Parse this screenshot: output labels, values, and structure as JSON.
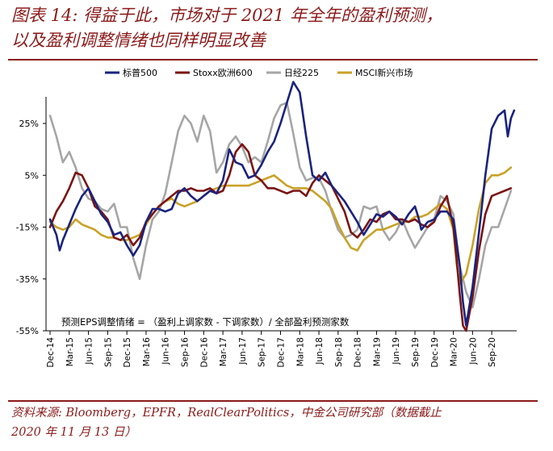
{
  "title": {
    "line1": "图表 14: 得益于此，市场对于 2021 年全年的盈利预测，",
    "line2": "以及盈利调整情绪也同样明显改善"
  },
  "source": {
    "line1": "资料来源: Bloomberg，EPFR，RealClearPolitics，中金公司研究部（数据截止",
    "line2": "2020 年 11 月 13 日）"
  },
  "chart_data": {
    "type": "line",
    "title": "",
    "xlabel": "",
    "ylabel": "",
    "ylim": [
      -55,
      37
    ],
    "y_ticks": [
      25,
      5,
      -15,
      -35,
      -55
    ],
    "y_tick_labels": [
      "25%",
      "5%",
      "-15%",
      "-35%",
      "-55%"
    ],
    "x_range": [
      0,
      71
    ],
    "x_ticks": [
      0,
      3,
      6,
      9,
      12,
      15,
      18,
      21,
      24,
      27,
      30,
      33,
      36,
      39,
      42,
      45,
      48,
      51,
      54,
      57,
      60,
      63,
      66,
      69
    ],
    "x_tick_labels": [
      "Dec-14",
      "Mar-15",
      "Jun-15",
      "Sep-15",
      "Dec-15",
      "Mar-16",
      "Jun-16",
      "Sep-16",
      "Dec-16",
      "Mar-17",
      "Jun-17",
      "Sep-17",
      "Dec-17",
      "Mar-18",
      "Jun-18",
      "Sep-18",
      "Dec-18",
      "Mar-19",
      "Jun-19",
      "Sep-19",
      "Dec-19",
      "Mar-20",
      "Jun-20",
      "Sep-20"
    ],
    "annotation": "预测EPS调整情绪 = （盈利上调家数 - 下调家数）/ 全部盈利预测家数",
    "series": [
      {
        "name": "标普500",
        "color": "#1a237e",
        "points": [
          [
            0,
            -12
          ],
          [
            1,
            -18
          ],
          [
            1.5,
            -24
          ],
          [
            2,
            -20
          ],
          [
            3,
            -14
          ],
          [
            4,
            -8
          ],
          [
            5,
            -3
          ],
          [
            6,
            0
          ],
          [
            7,
            -5
          ],
          [
            8,
            -10
          ],
          [
            9,
            -13
          ],
          [
            10,
            -18
          ],
          [
            11,
            -17
          ],
          [
            12,
            -22
          ],
          [
            13,
            -26
          ],
          [
            14,
            -22
          ],
          [
            15,
            -13
          ],
          [
            16,
            -8
          ],
          [
            17,
            -8
          ],
          [
            18,
            -9
          ],
          [
            19,
            -8
          ],
          [
            20,
            -2
          ],
          [
            21,
            0
          ],
          [
            22,
            -3
          ],
          [
            23,
            -5
          ],
          [
            24,
            -3
          ],
          [
            25,
            -1
          ],
          [
            26,
            -2
          ],
          [
            27,
            3
          ],
          [
            28,
            15
          ],
          [
            29,
            10
          ],
          [
            30,
            9
          ],
          [
            31,
            4
          ],
          [
            32,
            5
          ],
          [
            33,
            9
          ],
          [
            34,
            14
          ],
          [
            35,
            18
          ],
          [
            36,
            25
          ],
          [
            37,
            33
          ],
          [
            38,
            41
          ],
          [
            39,
            37
          ],
          [
            40,
            20
          ],
          [
            41,
            5
          ],
          [
            42,
            3
          ],
          [
            43,
            6
          ],
          [
            44,
            1
          ],
          [
            45,
            -2
          ],
          [
            46,
            -5
          ],
          [
            47,
            -9
          ],
          [
            48,
            -13
          ],
          [
            49,
            -18
          ],
          [
            50,
            -14
          ],
          [
            51,
            -10
          ],
          [
            52,
            -11
          ],
          [
            53,
            -9
          ],
          [
            54,
            -11
          ],
          [
            55,
            -14
          ],
          [
            56,
            -10
          ],
          [
            57,
            -7
          ],
          [
            57.5,
            -11
          ],
          [
            58,
            -16
          ],
          [
            59,
            -13
          ],
          [
            60,
            -12
          ],
          [
            61,
            -9
          ],
          [
            62,
            -9
          ],
          [
            63,
            -12
          ],
          [
            64,
            -30
          ],
          [
            64.5,
            -44
          ],
          [
            65,
            -53
          ],
          [
            66,
            -38
          ],
          [
            67,
            -17
          ],
          [
            68,
            5
          ],
          [
            69,
            23
          ],
          [
            70,
            28
          ],
          [
            71,
            30
          ],
          [
            71.5,
            20
          ],
          [
            72,
            27
          ],
          [
            72.5,
            30
          ]
        ]
      },
      {
        "name": "Stoxx欧洲600",
        "color": "#7b1414",
        "points": [
          [
            0,
            -15
          ],
          [
            1,
            -9
          ],
          [
            2,
            -5
          ],
          [
            3,
            0
          ],
          [
            4,
            6
          ],
          [
            5,
            5
          ],
          [
            6,
            0
          ],
          [
            7,
            -7
          ],
          [
            8,
            -9
          ],
          [
            9,
            -12
          ],
          [
            10,
            -19
          ],
          [
            11,
            -20
          ],
          [
            12,
            -18
          ],
          [
            13,
            -22
          ],
          [
            14,
            -19
          ],
          [
            15,
            -13
          ],
          [
            16,
            -10
          ],
          [
            17,
            -7
          ],
          [
            18,
            -5
          ],
          [
            19,
            -3
          ],
          [
            20,
            -1
          ],
          [
            21,
            -1
          ],
          [
            22,
            0
          ],
          [
            23,
            -1
          ],
          [
            24,
            -1
          ],
          [
            25,
            0
          ],
          [
            26,
            -2
          ],
          [
            27,
            -1
          ],
          [
            28,
            5
          ],
          [
            29,
            14
          ],
          [
            30,
            17
          ],
          [
            31,
            14
          ],
          [
            32,
            5
          ],
          [
            33,
            3
          ],
          [
            34,
            0
          ],
          [
            35,
            0
          ],
          [
            36,
            -1
          ],
          [
            37,
            -2
          ],
          [
            38,
            -1
          ],
          [
            39,
            -1
          ],
          [
            40,
            -3
          ],
          [
            41,
            2
          ],
          [
            42,
            5
          ],
          [
            43,
            3
          ],
          [
            44,
            1
          ],
          [
            45,
            -4
          ],
          [
            46,
            -9
          ],
          [
            47,
            -17
          ],
          [
            48,
            -19
          ],
          [
            49,
            -16
          ],
          [
            50,
            -12
          ],
          [
            51,
            -13
          ],
          [
            52,
            -10
          ],
          [
            53,
            -9
          ],
          [
            54,
            -12
          ],
          [
            55,
            -12
          ],
          [
            56,
            -13
          ],
          [
            57,
            -12
          ],
          [
            58,
            -14
          ],
          [
            59,
            -15
          ],
          [
            60,
            -13
          ],
          [
            61,
            -7
          ],
          [
            62,
            -3
          ],
          [
            63,
            -15
          ],
          [
            63.5,
            -27
          ],
          [
            64,
            -41
          ],
          [
            64.5,
            -53
          ],
          [
            65,
            -55
          ],
          [
            66,
            -42
          ],
          [
            67,
            -24
          ],
          [
            68,
            -10
          ],
          [
            69,
            -3
          ],
          [
            70,
            -2
          ],
          [
            71,
            -1
          ],
          [
            72,
            0
          ]
        ]
      },
      {
        "name": "日经225",
        "color": "#a6a6a6",
        "points": [
          [
            0,
            28
          ],
          [
            1,
            20
          ],
          [
            2,
            10
          ],
          [
            3,
            14
          ],
          [
            4,
            8
          ],
          [
            5,
            0
          ],
          [
            6,
            -4
          ],
          [
            7,
            -5
          ],
          [
            8,
            -8
          ],
          [
            9,
            -9
          ],
          [
            10,
            -6
          ],
          [
            11,
            -15
          ],
          [
            12,
            -15
          ],
          [
            13,
            -27
          ],
          [
            14,
            -35
          ],
          [
            15,
            -22
          ],
          [
            16,
            -12
          ],
          [
            17,
            -9
          ],
          [
            18,
            -2
          ],
          [
            19,
            10
          ],
          [
            20,
            22
          ],
          [
            21,
            28
          ],
          [
            22,
            25
          ],
          [
            23,
            18
          ],
          [
            24,
            28
          ],
          [
            25,
            22
          ],
          [
            26,
            6
          ],
          [
            27,
            10
          ],
          [
            28,
            17
          ],
          [
            29,
            20
          ],
          [
            30,
            16
          ],
          [
            31,
            10
          ],
          [
            32,
            12
          ],
          [
            33,
            10
          ],
          [
            34,
            18
          ],
          [
            35,
            27
          ],
          [
            36,
            32
          ],
          [
            37,
            33
          ],
          [
            38,
            21
          ],
          [
            39,
            8
          ],
          [
            40,
            3
          ],
          [
            41,
            4
          ],
          [
            42,
            4
          ],
          [
            43,
            -1
          ],
          [
            44,
            -9
          ],
          [
            45,
            -16
          ],
          [
            46,
            -19
          ],
          [
            47,
            -18
          ],
          [
            48,
            -16
          ],
          [
            49,
            -7
          ],
          [
            50,
            -8
          ],
          [
            51,
            -7
          ],
          [
            52,
            -16
          ],
          [
            53,
            -20
          ],
          [
            54,
            -17
          ],
          [
            55,
            -12
          ],
          [
            56,
            -18
          ],
          [
            57,
            -23
          ],
          [
            58,
            -19
          ],
          [
            59,
            -15
          ],
          [
            60,
            -12
          ],
          [
            61,
            -3
          ],
          [
            62,
            -5
          ],
          [
            63,
            -10
          ],
          [
            64,
            -30
          ],
          [
            65,
            -40
          ],
          [
            66,
            -46
          ],
          [
            67,
            -35
          ],
          [
            68,
            -22
          ],
          [
            69,
            -15
          ],
          [
            70,
            -15
          ],
          [
            71,
            -8
          ],
          [
            72,
            -1
          ]
        ]
      },
      {
        "name": "MSCI新兴市场",
        "color": "#c9a227",
        "points": [
          [
            0,
            -13
          ],
          [
            1,
            -15
          ],
          [
            2,
            -16
          ],
          [
            3,
            -15
          ],
          [
            4,
            -12
          ],
          [
            5,
            -14
          ],
          [
            6,
            -15
          ],
          [
            7,
            -16
          ],
          [
            8,
            -18
          ],
          [
            9,
            -19
          ],
          [
            10,
            -19
          ],
          [
            11,
            -20
          ],
          [
            12,
            -20
          ],
          [
            13,
            -19
          ],
          [
            14,
            -18
          ],
          [
            15,
            -14
          ],
          [
            16,
            -10
          ],
          [
            17,
            -7
          ],
          [
            18,
            -5
          ],
          [
            19,
            -4
          ],
          [
            20,
            -6
          ],
          [
            21,
            -7
          ],
          [
            22,
            -6
          ],
          [
            23,
            -5
          ],
          [
            24,
            -3
          ],
          [
            25,
            -1
          ],
          [
            26,
            0
          ],
          [
            27,
            1
          ],
          [
            28,
            1
          ],
          [
            29,
            1
          ],
          [
            30,
            1
          ],
          [
            31,
            1
          ],
          [
            32,
            2
          ],
          [
            33,
            3
          ],
          [
            34,
            4
          ],
          [
            35,
            5
          ],
          [
            36,
            3
          ],
          [
            37,
            1
          ],
          [
            38,
            0
          ],
          [
            39,
            0
          ],
          [
            40,
            0
          ],
          [
            41,
            -1
          ],
          [
            42,
            -3
          ],
          [
            43,
            -5
          ],
          [
            44,
            -8
          ],
          [
            45,
            -14
          ],
          [
            46,
            -19
          ],
          [
            47,
            -23
          ],
          [
            48,
            -24
          ],
          [
            49,
            -20
          ],
          [
            50,
            -18
          ],
          [
            51,
            -16
          ],
          [
            52,
            -16
          ],
          [
            53,
            -15
          ],
          [
            54,
            -14
          ],
          [
            55,
            -13
          ],
          [
            56,
            -13
          ],
          [
            57,
            -11
          ],
          [
            58,
            -11
          ],
          [
            59,
            -10
          ],
          [
            60,
            -8
          ],
          [
            61,
            -6
          ],
          [
            62,
            -8
          ],
          [
            63,
            -16
          ],
          [
            63.5,
            -29
          ],
          [
            64,
            -37
          ],
          [
            65,
            -33
          ],
          [
            66,
            -22
          ],
          [
            67,
            -8
          ],
          [
            68,
            2
          ],
          [
            69,
            5
          ],
          [
            70,
            5
          ],
          [
            71,
            6
          ],
          [
            72,
            8
          ]
        ]
      }
    ]
  }
}
